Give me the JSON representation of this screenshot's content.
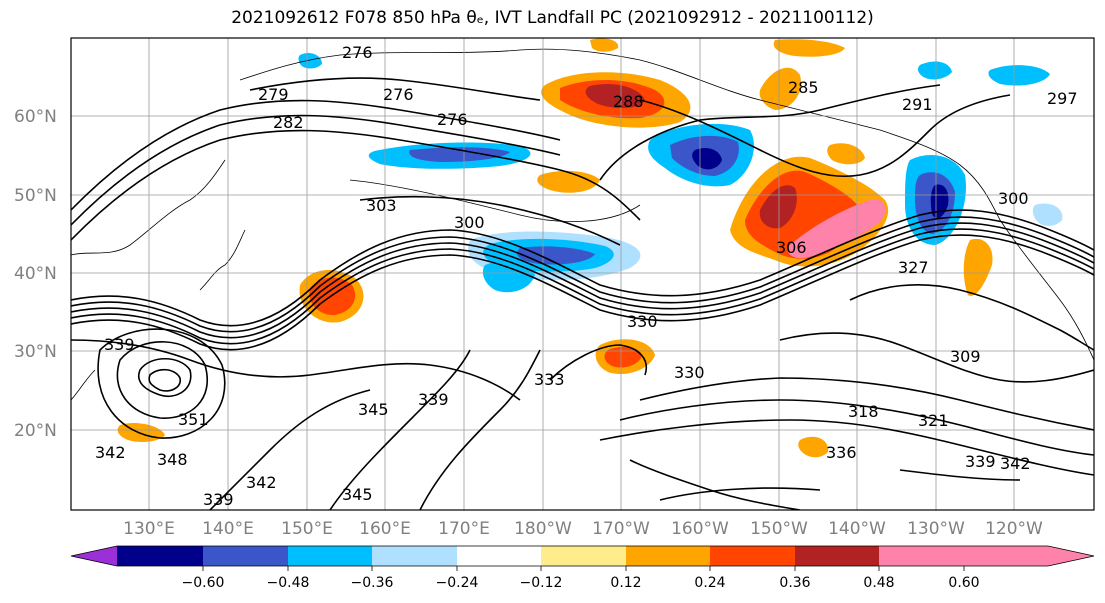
{
  "title": "2021092612 F078 850 hPa θₑ, IVT Landfall PC (2021092912 - 2021100112)",
  "map": {
    "lat_labels": [
      "20°N",
      "30°N",
      "40°N",
      "50°N",
      "60°N"
    ],
    "lon_labels": [
      "130°E",
      "140°E",
      "150°E",
      "160°E",
      "170°E",
      "180°W",
      "170°W",
      "160°W",
      "150°W",
      "140°W",
      "130°W",
      "120°W"
    ],
    "contour_labels": [
      "276",
      "279",
      "282",
      "276",
      "276",
      "288",
      "285",
      "291",
      "297",
      "303",
      "300",
      "306",
      "327",
      "300",
      "339",
      "330",
      "330",
      "333",
      "339",
      "345",
      "351",
      "348",
      "342",
      "339",
      "342",
      "345",
      "318",
      "321",
      "339",
      "342",
      "309",
      "336"
    ]
  },
  "colorbar": {
    "tick_labels": [
      "−0.60",
      "−0.48",
      "−0.36",
      "−0.24",
      "−0.12",
      "0.12",
      "0.24",
      "0.36",
      "0.48",
      "0.60"
    ],
    "colors": [
      "#9b30d9",
      "#00008b",
      "#3a56c8",
      "#00bfff",
      "#b0e0ff",
      "#ffffff",
      "#ffec8b",
      "#ffa500",
      "#ff4500",
      "#b22222",
      "#ff82ab"
    ]
  }
}
